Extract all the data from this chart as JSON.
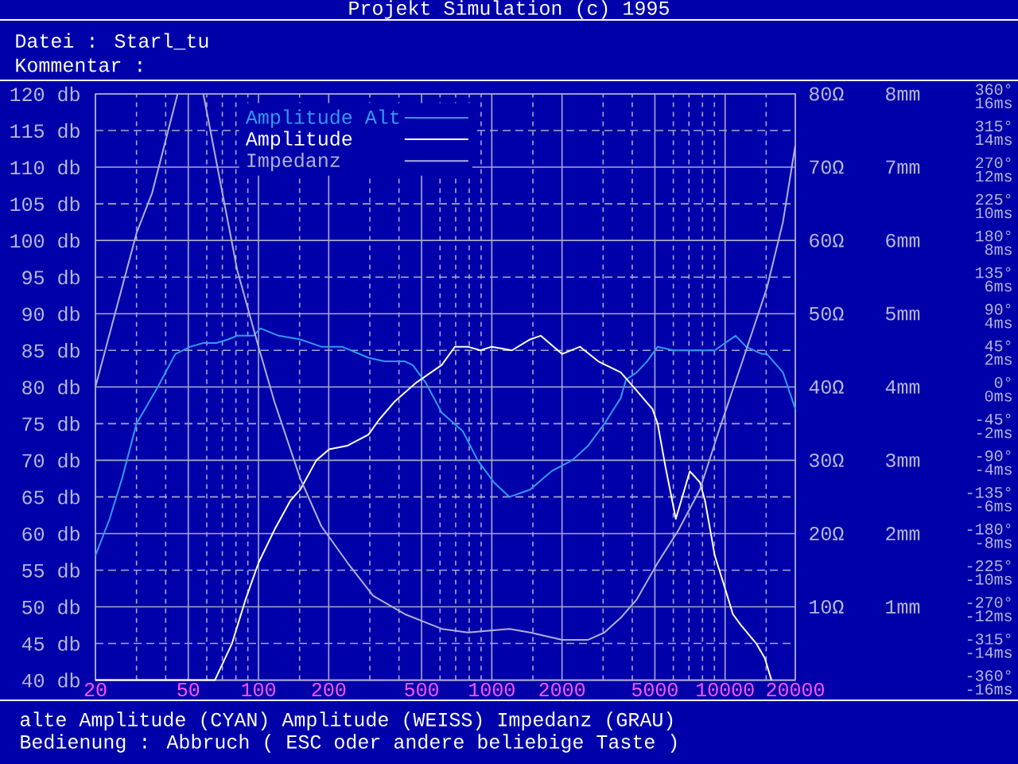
{
  "chart_data": {
    "type": "line",
    "title": "Projekt Simulation (c) 1995",
    "annotations": [
      "Datei : Starl_tu",
      "Kommentar :",
      "alte Amplitude (CYAN) Amplitude (WEISS) Impedanz (GRAU)",
      "Bedienung : Abbruch ( ESC oder andere beliebige Taste )",
      "-360°",
      "-315°",
      "-270°",
      "-225°",
      "-180°",
      "-135°",
      "-90°",
      "-45°",
      "0°",
      "45°",
      "90°",
      "135°",
      "180°",
      "225°",
      "270°",
      "315°",
      "360°",
      "-16ms",
      "-14ms",
      "-12ms",
      "-10ms",
      "-8ms",
      "-6ms",
      "-4ms",
      "-2ms",
      "0ms",
      "2ms",
      "4ms",
      "6ms",
      "8ms",
      "10ms",
      "12ms",
      "14ms",
      "16ms"
    ],
    "log": "x",
    "grid": true,
    "legend": "top left",
    "xlim": [
      20,
      20000
    ],
    "xticks": [
      20,
      {
        "value": 30,
        "label": null
      },
      {
        "value": 40,
        "label": null
      },
      50,
      {
        "value": 60,
        "label": null
      },
      {
        "value": 70,
        "label": null
      },
      {
        "value": 80,
        "label": null
      },
      {
        "value": 90,
        "label": null
      },
      100,
      {
        "value": 150,
        "label": null
      },
      200,
      {
        "value": 300,
        "label": null
      },
      {
        "value": 400,
        "label": null
      },
      500,
      {
        "value": 600,
        "label": null
      },
      {
        "value": 700,
        "label": null
      },
      {
        "value": 800,
        "label": null
      },
      {
        "value": 900,
        "label": null
      },
      1000,
      {
        "value": 1500,
        "label": null
      },
      2000,
      {
        "value": 3000,
        "label": null
      },
      {
        "value": 4000,
        "label": null
      },
      5000,
      {
        "value": 6000,
        "label": null
      },
      {
        "value": 7000,
        "label": null
      },
      {
        "value": 8000,
        "label": null
      },
      {
        "value": 9000,
        "label": null
      },
      10000,
      {
        "value": 15000,
        "label": null
      },
      20000
    ],
    "ylim": [
      40,
      120
    ],
    "yticks": [
      {
        "value": 40,
        "label": "40 db"
      },
      {
        "value": 45,
        "label": "45 db"
      },
      {
        "value": 50,
        "label": "50 db"
      },
      {
        "value": 55,
        "label": "55 db"
      },
      {
        "value": 60,
        "label": "60 db"
      },
      {
        "value": 65,
        "label": "65 db"
      },
      {
        "value": 70,
        "label": "70 db"
      },
      {
        "value": 75,
        "label": "75 db"
      },
      {
        "value": 80,
        "label": "80 db"
      },
      {
        "value": 85,
        "label": "85 db"
      },
      {
        "value": 90,
        "label": "90 db"
      },
      {
        "value": 95,
        "label": "95 db"
      },
      {
        "value": 100,
        "label": "100 db"
      },
      {
        "value": 105,
        "label": "105 db"
      },
      {
        "value": 110,
        "label": "110 db"
      },
      {
        "value": 115,
        "label": "115 db"
      },
      {
        "value": 120,
        "label": "120 db"
      }
    ],
    "y2lim": [
      0,
      80
    ],
    "y2ticks": [
      {
        "value": 10,
        "label": "10Ω"
      },
      {
        "value": 20,
        "label": "20Ω"
      },
      {
        "value": 30,
        "label": "30Ω"
      },
      {
        "value": 40,
        "label": "40Ω"
      },
      {
        "value": 50,
        "label": "50Ω"
      },
      {
        "value": 60,
        "label": "60Ω"
      },
      {
        "value": 70,
        "label": "70Ω"
      },
      {
        "value": 80,
        "label": "80Ω"
      }
    ],
    "y3lim": [
      0,
      8
    ],
    "y3ticks": [
      {
        "value": 1,
        "label": "1mm"
      },
      {
        "value": 2,
        "label": "2mm"
      },
      {
        "value": 3,
        "label": "3mm"
      },
      {
        "value": 4,
        "label": "4mm"
      },
      {
        "value": 5,
        "label": "5mm"
      },
      {
        "value": 6,
        "label": "6mm"
      },
      {
        "value": 7,
        "label": "7mm"
      },
      {
        "value": 8,
        "label": "8mm"
      }
    ],
    "series": [
      {
        "name": "Amplitude Alt",
        "color": "#3399ee",
        "x": [
          20,
          23,
          26,
          30,
          37,
          44,
          51,
          58,
          66,
          74,
          81,
          95,
          102,
          122,
          151,
          186,
          228,
          296,
          347,
          424,
          458,
          523,
          610,
          750,
          870,
          1020,
          1190,
          1460,
          1800,
          2210,
          2590,
          3040,
          3570,
          3760,
          4180,
          4630,
          5140,
          6020,
          7060,
          9030,
          10000,
          11100,
          12300,
          14400,
          15100,
          17700,
          20000
        ],
        "values": [
          57,
          62,
          67.5,
          75,
          80,
          84.5,
          85.5,
          86,
          86,
          86.5,
          87,
          87,
          88,
          87,
          86.5,
          85.5,
          85.5,
          84,
          83.5,
          83.5,
          83,
          80.5,
          76.5,
          74,
          70,
          67,
          65,
          66,
          68.5,
          70,
          72,
          75,
          78.5,
          81,
          82,
          83.5,
          85.5,
          85,
          85,
          85,
          86,
          87,
          85.5,
          84.5,
          84.5,
          82,
          77
        ]
      },
      {
        "name": "Amplitude",
        "color": "#ffffff",
        "x": [
          20,
          65,
          77,
          88,
          100,
          117,
          137,
          151,
          177,
          201,
          241,
          296,
          328,
          383,
          470,
          610,
          695,
          790,
          893,
          1000,
          1220,
          1460,
          1620,
          2000,
          2390,
          2860,
          3570,
          4180,
          4880,
          5140,
          5560,
          6150,
          7060,
          7800,
          8200,
          9030,
          10000,
          10800,
          11700,
          13600,
          14800,
          15800
        ],
        "values": [
          40,
          40,
          45,
          51,
          56,
          60.5,
          64.5,
          66,
          70,
          71.5,
          72,
          73.5,
          75.5,
          78,
          80.5,
          83,
          85.5,
          85.5,
          85,
          85.5,
          85,
          86.5,
          87,
          84.5,
          85.5,
          83.5,
          82,
          79.5,
          77,
          75,
          69,
          62,
          68.5,
          67,
          64.5,
          57,
          52.5,
          49,
          47.5,
          45,
          43,
          40
        ]
      },
      {
        "name": "Impedanz",
        "color": "#b0b0dc",
        "axis": "y2",
        "x": [
          20,
          30,
          35,
          45,
          54,
          58,
          70,
          81,
          100,
          117,
          151,
          186,
          241,
          310,
          424,
          610,
          790,
          1190,
          1460,
          2000,
          2590,
          3040,
          3570,
          4180,
          5140,
          6320,
          7800,
          9400,
          12300,
          15100,
          17700,
          20000
        ],
        "values": [
          40,
          61,
          66.5,
          80,
          null,
          80,
          66.5,
          56,
          45.5,
          38,
          27.5,
          21,
          16,
          11.5,
          9,
          7,
          6.5,
          7,
          6.5,
          5.5,
          5.5,
          6.5,
          8.5,
          11,
          16,
          20.5,
          26,
          34,
          45,
          53.5,
          62.5,
          73
        ]
      }
    ]
  }
}
